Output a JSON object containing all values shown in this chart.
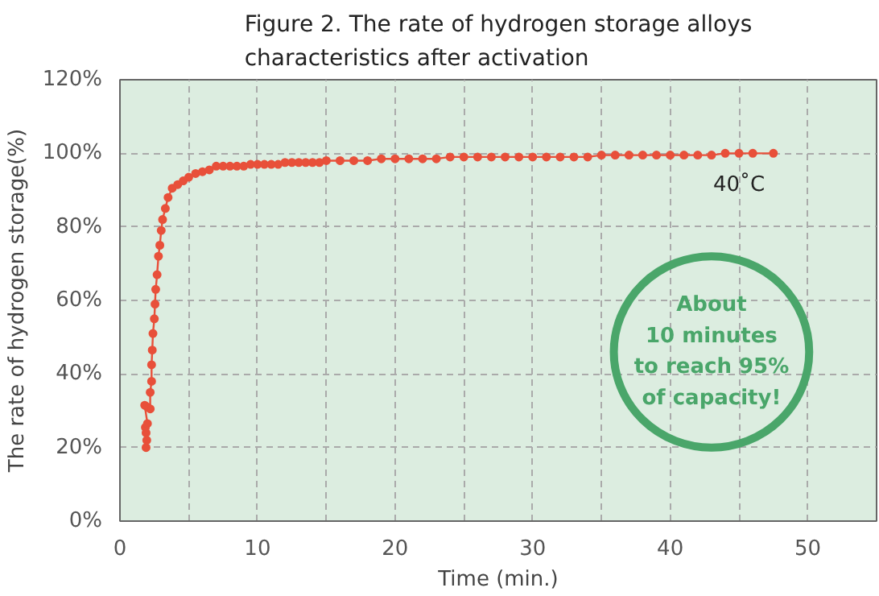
{
  "chart_data": {
    "type": "line",
    "title": "Figure 2. The rate of hydrogen storage alloys characteristics after activation",
    "xlabel": "Time (min.)",
    "ylabel": "The rate of hydrogen storage(%)",
    "x": [
      1.9,
      1.95,
      1.9,
      1.85,
      2.0,
      1.8,
      2.0,
      2.2,
      2.2,
      2.3,
      2.3,
      2.35,
      2.4,
      2.5,
      2.55,
      2.6,
      2.7,
      2.8,
      2.9,
      3.0,
      3.1,
      3.3,
      3.5,
      3.8,
      4.2,
      4.6,
      5.0,
      5.5,
      6.0,
      6.5,
      7.0,
      7.5,
      8.0,
      8.5,
      9.0,
      9.5,
      10.0,
      10.5,
      11.0,
      11.5,
      12.0,
      12.5,
      13.0,
      13.5,
      14.0,
      14.5,
      15.0,
      16.0,
      17.0,
      18.0,
      19.0,
      20.0,
      21.0,
      22.0,
      23.0,
      24.0,
      25.0,
      26.0,
      27.0,
      28.0,
      29.0,
      30.0,
      31.0,
      32.0,
      33.0,
      34.0,
      35.0,
      36.0,
      37.0,
      38.0,
      39.0,
      40.0,
      41.0,
      42.0,
      43.0,
      44.0,
      45.0,
      46.0,
      47.5
    ],
    "series": [
      {
        "color": "#e8503a",
        "values": [
          20,
          22,
          24,
          25.5,
          26.5,
          31.5,
          31,
          30.5,
          35,
          38,
          42.5,
          46.5,
          51,
          55,
          59,
          63,
          67,
          72,
          75,
          79,
          82,
          85,
          88,
          90.5,
          91.5,
          92.5,
          93.5,
          94.5,
          95,
          95.5,
          96.5,
          96.5,
          96.5,
          96.5,
          96.5,
          97,
          97,
          97,
          97,
          97,
          97.5,
          97.5,
          97.5,
          97.5,
          97.5,
          97.5,
          98,
          98,
          98,
          98,
          98.5,
          98.5,
          98.5,
          98.5,
          98.5,
          99,
          99,
          99,
          99,
          99,
          99,
          99,
          99,
          99,
          99,
          99,
          99.5,
          99.5,
          99.5,
          99.5,
          99.5,
          99.5,
          99.5,
          99.5,
          99.5,
          100,
          100,
          100,
          100
        ]
      }
    ],
    "xlim": [
      0,
      55
    ],
    "xticks": [
      0,
      {
        "value": 5,
        "label": null
      },
      10,
      {
        "value": 15,
        "label": null
      },
      20,
      {
        "value": 25,
        "label": null
      },
      30,
      {
        "value": 35,
        "label": null
      },
      40,
      {
        "value": 45,
        "label": null
      },
      50
    ],
    "ylim": [
      0,
      120
    ],
    "yticks": [
      {
        "value": 0,
        "label": "0%"
      },
      {
        "value": 20,
        "label": "20%"
      },
      {
        "value": 40,
        "label": "40%"
      },
      {
        "value": 60,
        "label": "60%"
      },
      {
        "value": 80,
        "label": "80%"
      },
      {
        "value": 100,
        "label": "100%"
      },
      {
        "value": 120,
        "label": "120%"
      }
    ],
    "grid": true,
    "marker": "circle",
    "line_style": "solid",
    "annotations": [
      "40˚C",
      "About\n10 minutes\nto reach 95%\nof capacity!"
    ]
  }
}
